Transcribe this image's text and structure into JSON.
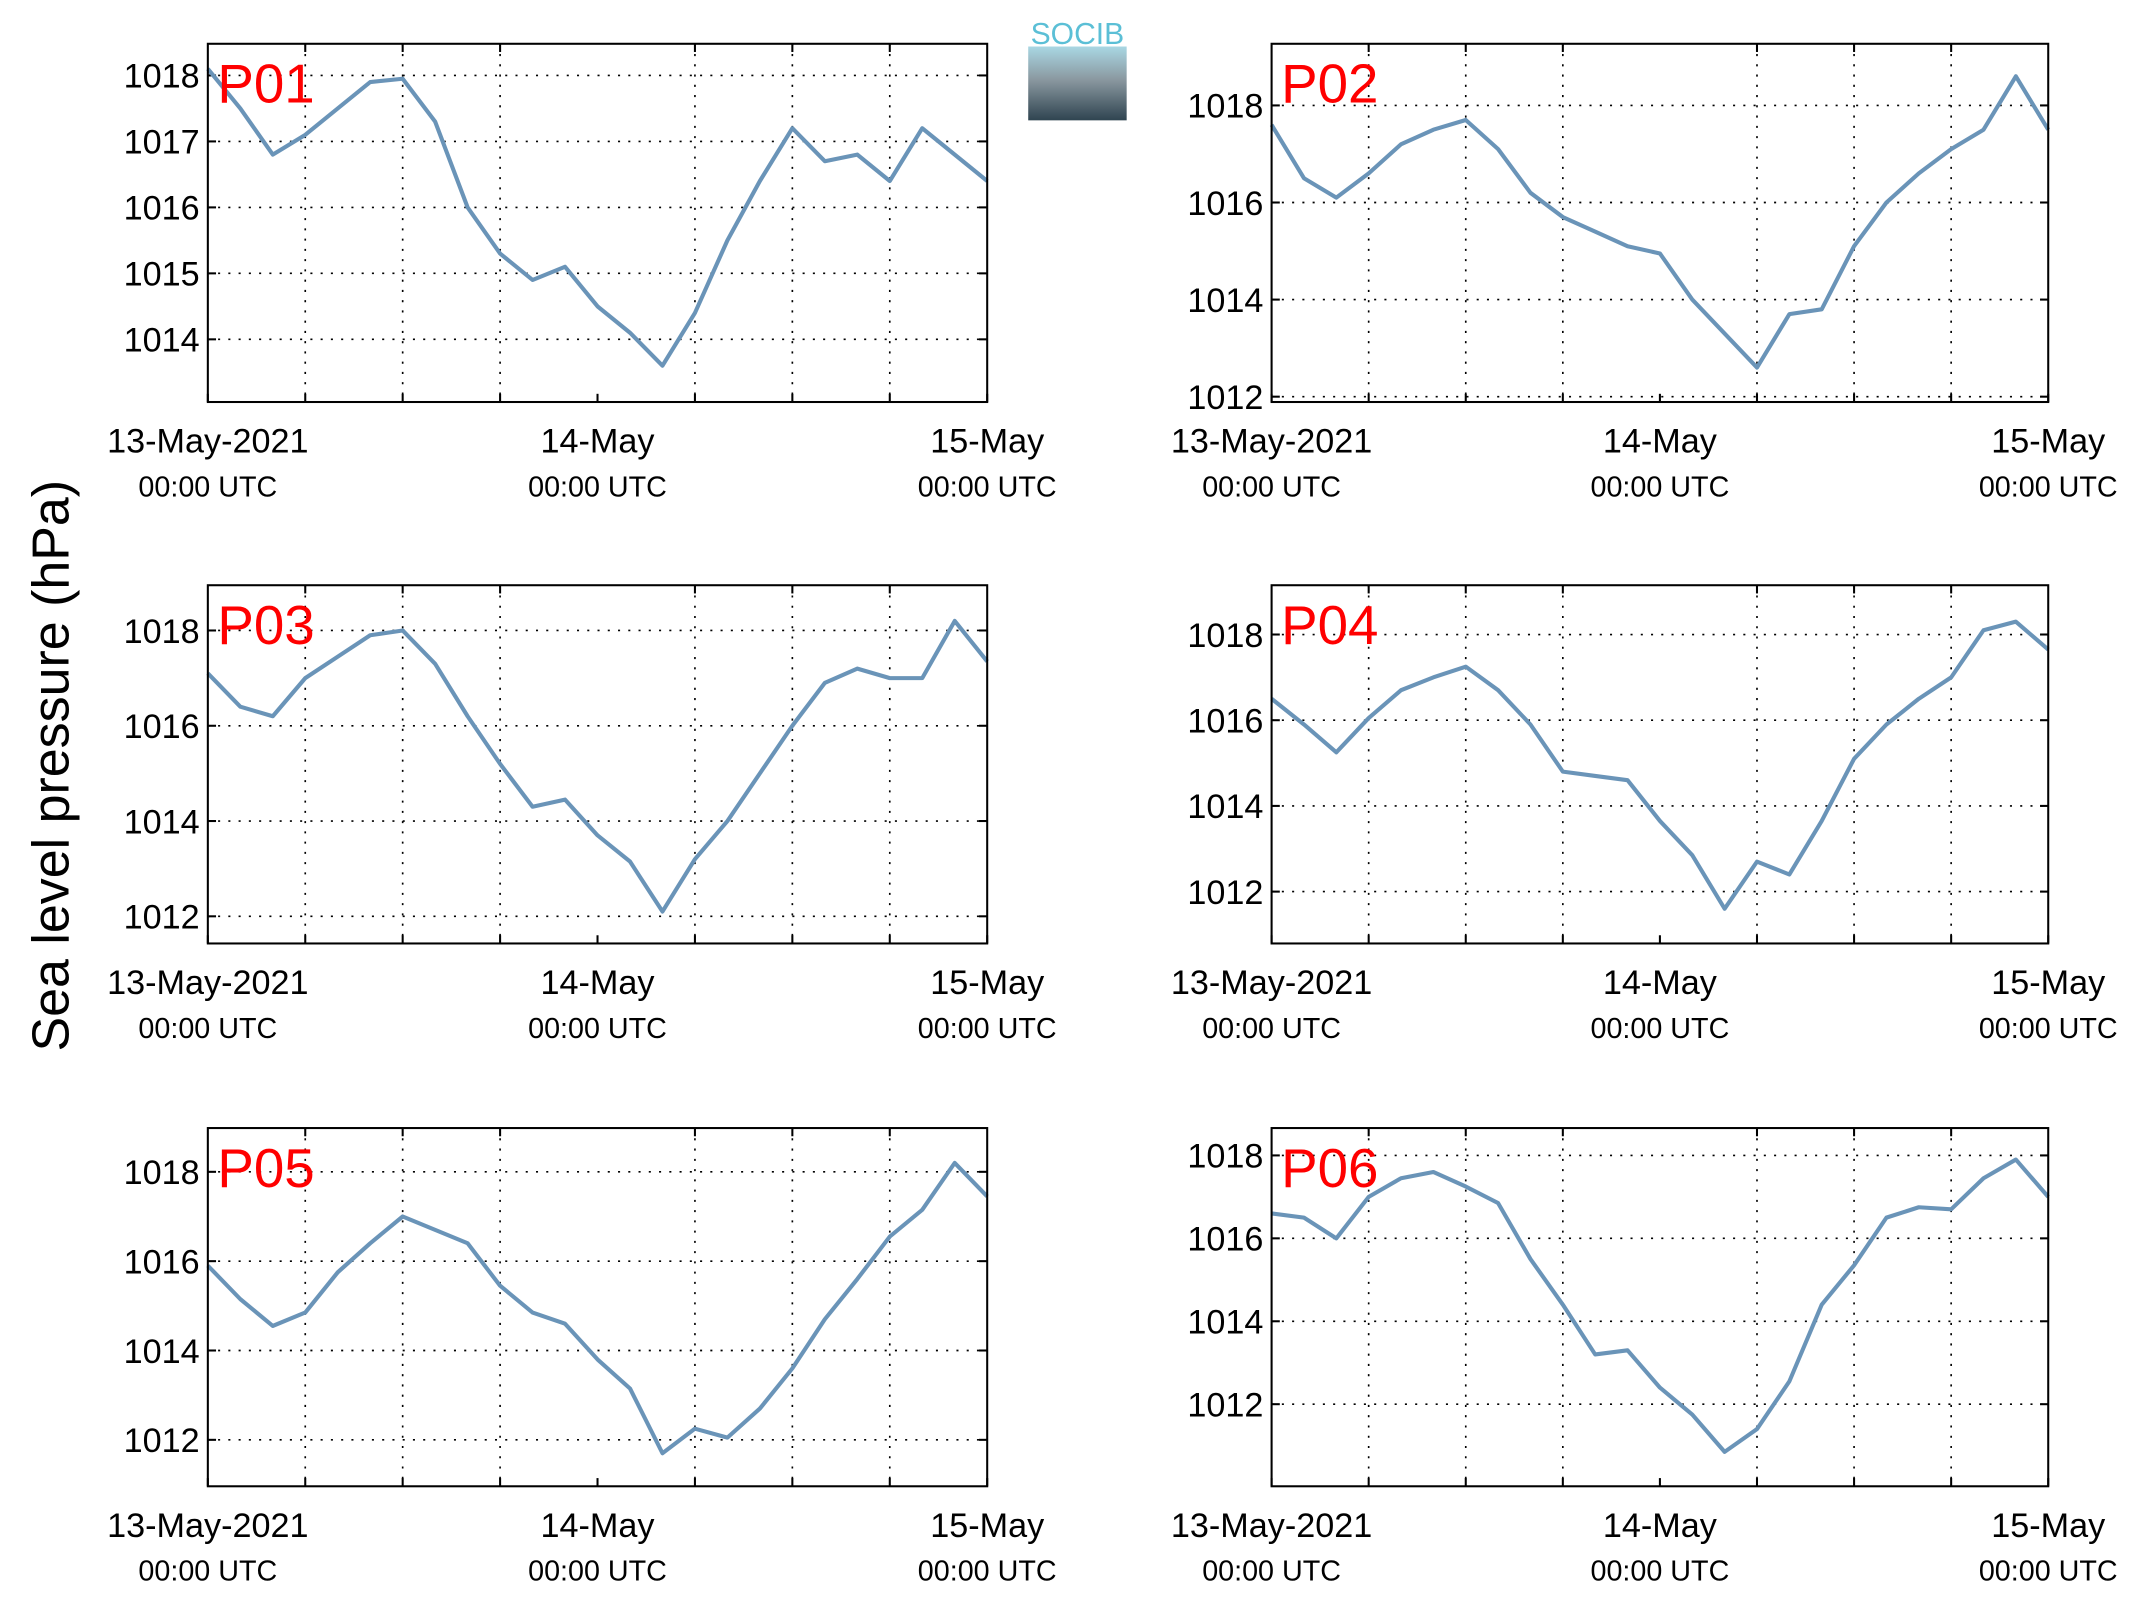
{
  "ylabel": "Sea level pressure (hPa)",
  "logo": "SOCIB",
  "chart_data": [
    {
      "type": "line",
      "title": "P01",
      "x": [
        0,
        2,
        4,
        6,
        8,
        10,
        12,
        14,
        16,
        18,
        20,
        22,
        24,
        26,
        28,
        30,
        32,
        34,
        36,
        38,
        40,
        42,
        44,
        46,
        48
      ],
      "series": [
        {
          "color": "#6a94b8",
          "values": [
            1018.1,
            1017.5,
            1016.8,
            1017.1,
            1017.5,
            1017.9,
            1017.95,
            1017.3,
            1016.0,
            1015.3,
            1014.9,
            1015.1,
            1014.5,
            1014.1,
            1013.6,
            1014.4,
            1015.5,
            1016.4,
            1017.2,
            1016.7,
            1016.8,
            1016.4,
            1017.2,
            1016.8,
            1016.4
          ]
        }
      ],
      "xlim": [
        0,
        48
      ],
      "xticks": [
        {
          "value": 0,
          "label": [
            "13-May-2021",
            "00:00 UTC"
          ]
        },
        {
          "value": 24,
          "label": [
            "14-May",
            "00:00 UTC"
          ]
        },
        {
          "value": 48,
          "label": [
            "15-May",
            "00:00 UTC"
          ]
        }
      ],
      "xminorticks": [
        6,
        12,
        18,
        30,
        36,
        42
      ],
      "ylim": [
        1013.05,
        1018.48
      ],
      "yticks": [
        1014,
        1015,
        1016,
        1017,
        1018
      ],
      "grid": true
    },
    {
      "type": "line",
      "title": "P02",
      "x": [
        0,
        2,
        4,
        6,
        8,
        10,
        12,
        14,
        16,
        18,
        20,
        22,
        24,
        26,
        28,
        30,
        32,
        34,
        36,
        38,
        40,
        42,
        44,
        46,
        48
      ],
      "series": [
        {
          "color": "#6a94b8",
          "values": [
            1017.6,
            1016.5,
            1016.1,
            1016.6,
            1017.2,
            1017.5,
            1017.7,
            1017.1,
            1016.2,
            1015.7,
            1015.4,
            1015.1,
            1014.95,
            1014.0,
            1013.3,
            1012.6,
            1013.7,
            1013.8,
            1015.1,
            1016.0,
            1016.6,
            1017.1,
            1017.5,
            1018.6,
            1017.5
          ]
        }
      ],
      "xlim": [
        0,
        48
      ],
      "xticks": [
        {
          "value": 0,
          "label": [
            "13-May-2021",
            "00:00 UTC"
          ]
        },
        {
          "value": 24,
          "label": [
            "14-May",
            "00:00 UTC"
          ]
        },
        {
          "value": 48,
          "label": [
            "15-May",
            "00:00 UTC"
          ]
        }
      ],
      "xminorticks": [
        6,
        12,
        18,
        30,
        36,
        42
      ],
      "ylim": [
        1011.89,
        1019.27
      ],
      "yticks": [
        1012,
        1014,
        1016,
        1018
      ],
      "grid": true
    },
    {
      "type": "line",
      "title": "P03",
      "x": [
        0,
        2,
        4,
        6,
        8,
        10,
        12,
        14,
        16,
        18,
        20,
        22,
        24,
        26,
        28,
        30,
        32,
        34,
        36,
        38,
        40,
        42,
        44,
        46,
        48
      ],
      "series": [
        {
          "color": "#6a94b8",
          "values": [
            1017.1,
            1016.4,
            1016.2,
            1017.0,
            1017.45,
            1017.9,
            1018.0,
            1017.3,
            1016.2,
            1015.2,
            1014.3,
            1014.45,
            1013.7,
            1013.15,
            1012.1,
            1013.2,
            1014.0,
            1015.0,
            1016.0,
            1016.9,
            1017.2,
            1017.0,
            1017.0,
            1018.2,
            1017.35
          ]
        }
      ],
      "xlim": [
        0,
        48
      ],
      "xticks": [
        {
          "value": 0,
          "label": [
            "13-May-2021",
            "00:00 UTC"
          ]
        },
        {
          "value": 24,
          "label": [
            "14-May",
            "00:00 UTC"
          ]
        },
        {
          "value": 48,
          "label": [
            "15-May",
            "00:00 UTC"
          ]
        }
      ],
      "xminorticks": [
        6,
        12,
        18,
        30,
        36,
        42
      ],
      "ylim": [
        1011.43,
        1018.95
      ],
      "yticks": [
        1012,
        1014,
        1016,
        1018
      ],
      "grid": true
    },
    {
      "type": "line",
      "title": "P04",
      "x": [
        0,
        2,
        4,
        6,
        8,
        10,
        12,
        14,
        16,
        18,
        20,
        22,
        24,
        26,
        28,
        30,
        32,
        34,
        36,
        38,
        40,
        42,
        44,
        46,
        48
      ],
      "series": [
        {
          "color": "#6a94b8",
          "values": [
            1016.5,
            1015.9,
            1015.25,
            1016.05,
            1016.7,
            1017.0,
            1017.25,
            1016.7,
            1015.9,
            1014.8,
            1014.7,
            1014.6,
            1013.65,
            1012.85,
            1011.6,
            1012.7,
            1012.4,
            1013.65,
            1015.1,
            1015.9,
            1016.5,
            1017.0,
            1018.1,
            1018.3,
            1017.65
          ]
        }
      ],
      "xlim": [
        0,
        48
      ],
      "xticks": [
        {
          "value": 0,
          "label": [
            "13-May-2021",
            "00:00 UTC"
          ]
        },
        {
          "value": 24,
          "label": [
            "14-May",
            "00:00 UTC"
          ]
        },
        {
          "value": 48,
          "label": [
            "15-May",
            "00:00 UTC"
          ]
        }
      ],
      "xminorticks": [
        6,
        12,
        18,
        30,
        36,
        42
      ],
      "ylim": [
        1010.79,
        1019.15
      ],
      "yticks": [
        1012,
        1014,
        1016,
        1018
      ],
      "grid": true
    },
    {
      "type": "line",
      "title": "P05",
      "x": [
        0,
        2,
        4,
        6,
        8,
        10,
        12,
        14,
        16,
        18,
        20,
        22,
        24,
        26,
        28,
        30,
        32,
        34,
        36,
        38,
        40,
        42,
        44,
        46,
        48
      ],
      "series": [
        {
          "color": "#6a94b8",
          "values": [
            1015.9,
            1015.15,
            1014.55,
            1014.85,
            1015.75,
            1016.4,
            1017.0,
            1016.7,
            1016.4,
            1015.45,
            1014.85,
            1014.6,
            1013.8,
            1013.15,
            1011.7,
            1012.25,
            1012.05,
            1012.7,
            1013.6,
            1014.7,
            1015.6,
            1016.55,
            1017.15,
            1018.2,
            1017.45
          ]
        }
      ],
      "xlim": [
        0,
        48
      ],
      "xticks": [
        {
          "value": 0,
          "label": [
            "13-May-2021",
            "00:00 UTC"
          ]
        },
        {
          "value": 24,
          "label": [
            "14-May",
            "00:00 UTC"
          ]
        },
        {
          "value": 48,
          "label": [
            "15-May",
            "00:00 UTC"
          ]
        }
      ],
      "xminorticks": [
        6,
        12,
        18,
        30,
        36,
        42
      ],
      "ylim": [
        1010.96,
        1018.98
      ],
      "yticks": [
        1012,
        1014,
        1016,
        1018
      ],
      "grid": true
    },
    {
      "type": "line",
      "title": "P06",
      "x": [
        0,
        2,
        4,
        6,
        8,
        10,
        12,
        14,
        16,
        18,
        20,
        22,
        24,
        26,
        28,
        30,
        32,
        34,
        36,
        38,
        40,
        42,
        44,
        46,
        48
      ],
      "series": [
        {
          "color": "#6a94b8",
          "values": [
            1016.6,
            1016.5,
            1016.0,
            1017.0,
            1017.45,
            1017.6,
            1017.25,
            1016.85,
            1015.5,
            1014.4,
            1013.2,
            1013.3,
            1012.4,
            1011.75,
            1010.85,
            1011.4,
            1012.55,
            1014.4,
            1015.35,
            1016.5,
            1016.75,
            1016.7,
            1017.45,
            1017.9,
            1017.0
          ]
        }
      ],
      "xlim": [
        0,
        48
      ],
      "xticks": [
        {
          "value": 0,
          "label": [
            "13-May-2021",
            "00:00 UTC"
          ]
        },
        {
          "value": 24,
          "label": [
            "14-May",
            "00:00 UTC"
          ]
        },
        {
          "value": 48,
          "label": [
            "15-May",
            "00:00 UTC"
          ]
        }
      ],
      "xminorticks": [
        6,
        12,
        18,
        30,
        36,
        42
      ],
      "ylim": [
        1010.02,
        1018.66
      ],
      "yticks": [
        1012,
        1014,
        1016,
        1018
      ],
      "grid": true
    }
  ]
}
